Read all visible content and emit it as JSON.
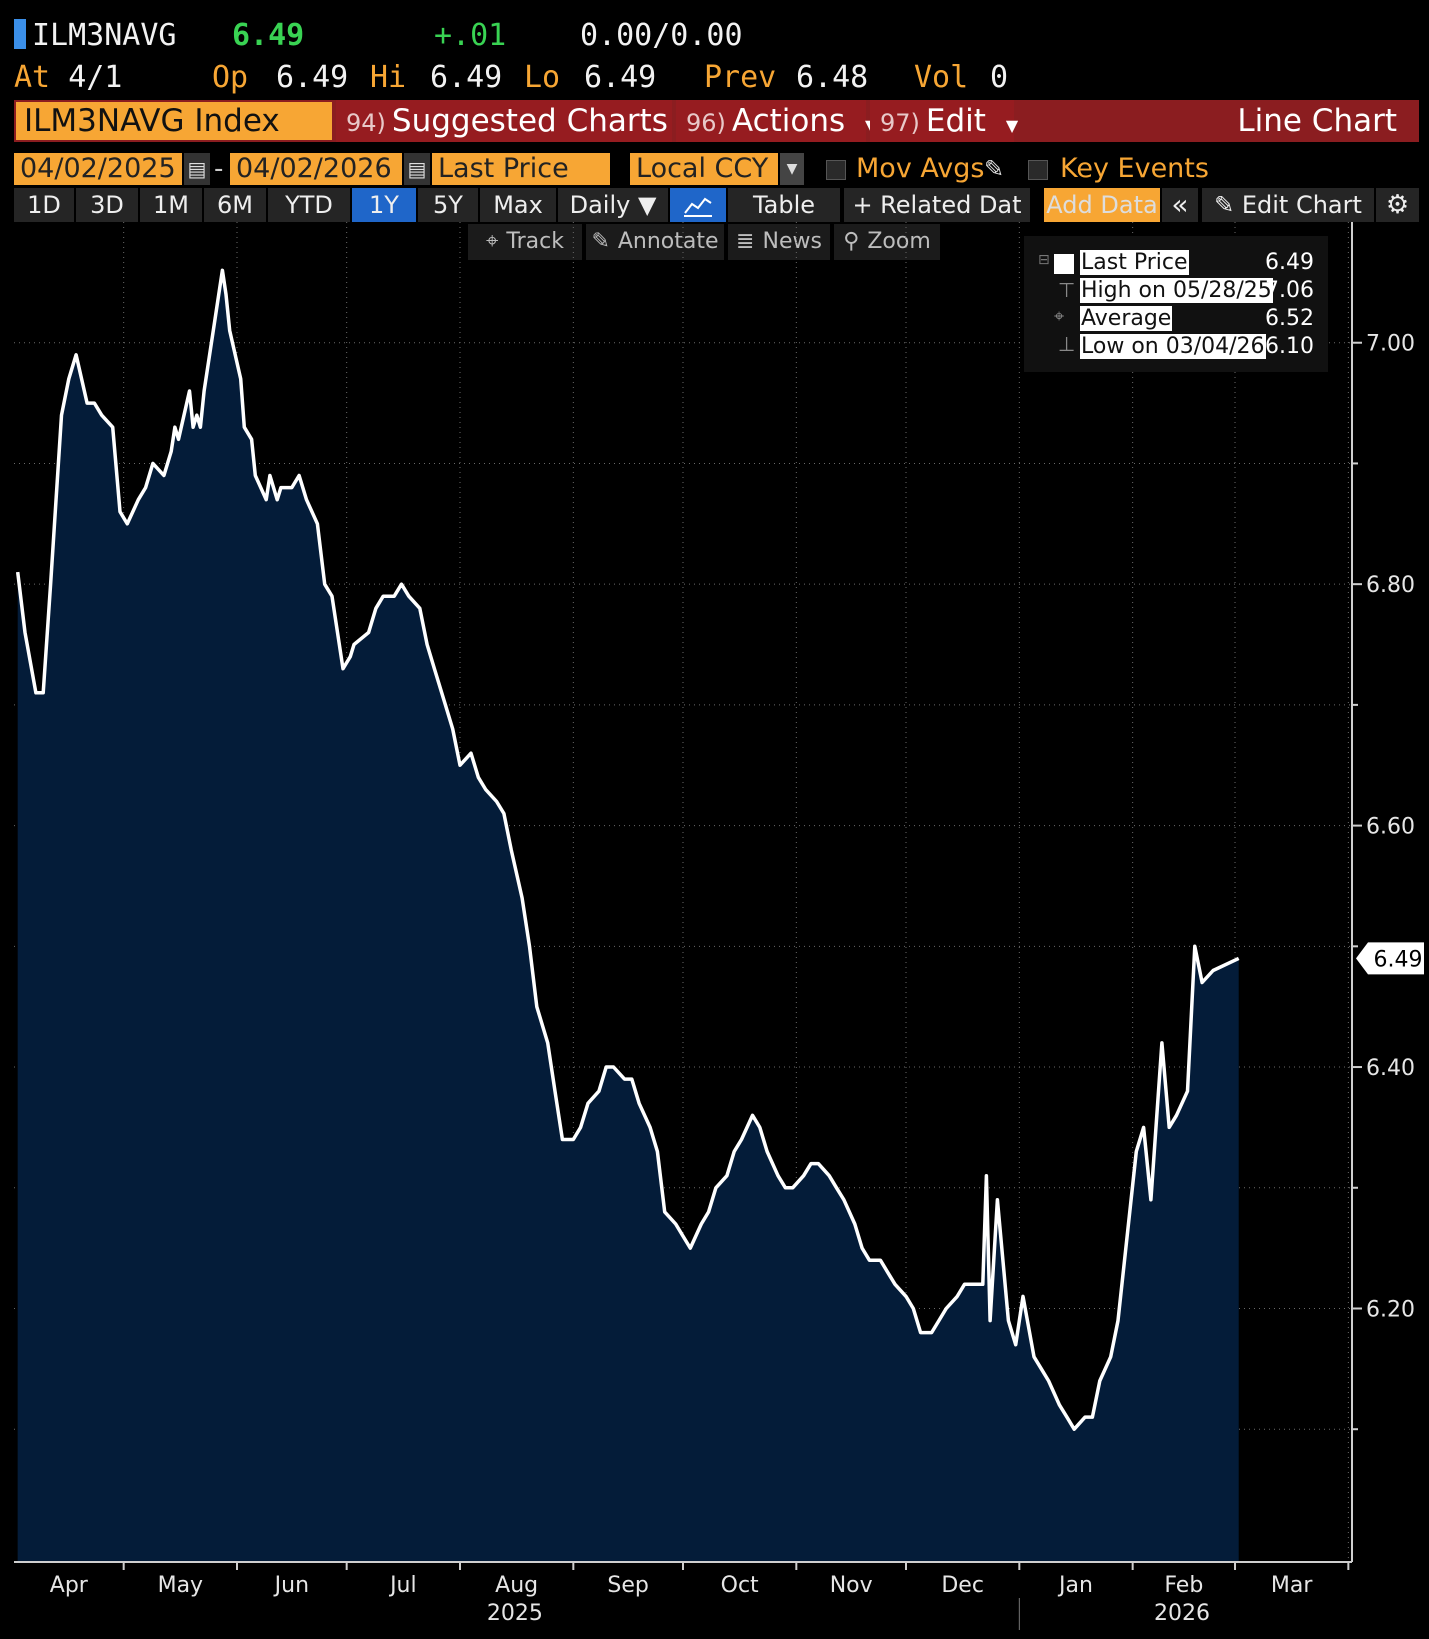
{
  "quote": {
    "ticker": "ILM3NAVG",
    "last": "6.49",
    "change": "+.01",
    "bid_ask": "0.00/0.00",
    "at_label": "At",
    "at_date": "4/1",
    "open_label": "Op",
    "open": "6.49",
    "high_label": "Hi",
    "high": "6.49",
    "low_label": "Lo",
    "low": "6.49",
    "prev_label": "Prev",
    "prev": "6.48",
    "vol_label": "Vol",
    "vol": "0"
  },
  "menu": {
    "security": "ILM3NAVG Index",
    "suggested_num": "94)",
    "suggested": "Suggested Charts",
    "actions_num": "96)",
    "actions": "Actions",
    "edit_num": "97)",
    "edit": "Edit",
    "chart_type": "Line Chart"
  },
  "settings": {
    "start_date": "04/02/2025",
    "end_date": "04/02/2026",
    "date_sep": "-",
    "field": "Last Price",
    "currency": "Local CCY",
    "mov_avgs": "Mov Avgs",
    "key_events": "Key Events"
  },
  "ranges": {
    "r1d": "1D",
    "r3d": "3D",
    "r1m": "1M",
    "r6m": "6M",
    "rytd": "YTD",
    "r1y": "1Y",
    "r5y": "5Y",
    "rmax": "Max",
    "frequency": "Daily ▼",
    "table": "Table",
    "related": "+ Related Dat",
    "add_data": "Add Data",
    "collapse": "«",
    "edit_chart": "✎ Edit Chart",
    "settings_icon": "⚙"
  },
  "tools": {
    "track": "Track",
    "annotate": "Annotate",
    "news": "News",
    "zoom": "Zoom"
  },
  "legend": {
    "last_label": "Last Price",
    "last_value": "6.49",
    "high_label": "High on 05/28/25",
    "high_value": "7.06",
    "avg_label": "Average",
    "avg_value": "6.52",
    "low_label": "Low on 03/04/26",
    "low_value": "6.10"
  },
  "colors": {
    "line": "#ffffff",
    "fill": "#041c39",
    "grid": "#6a6a6a",
    "accent_orange": "#f7a634",
    "menu_red": "#961c20"
  },
  "chart_data": {
    "type": "area",
    "series": [
      {
        "name": "Last Price",
        "values": [
          [
            "2025-04-02",
            6.81
          ],
          [
            "2025-04-04",
            6.76
          ],
          [
            "2025-04-07",
            6.71
          ],
          [
            "2025-04-09",
            6.71
          ],
          [
            "2025-04-11",
            6.8
          ],
          [
            "2025-04-14",
            6.94
          ],
          [
            "2025-04-16",
            6.97
          ],
          [
            "2025-04-18",
            6.99
          ],
          [
            "2025-04-21",
            6.95
          ],
          [
            "2025-04-23",
            6.95
          ],
          [
            "2025-04-25",
            6.94
          ],
          [
            "2025-04-28",
            6.93
          ],
          [
            "2025-04-30",
            6.86
          ],
          [
            "2025-05-02",
            6.85
          ],
          [
            "2025-05-05",
            6.87
          ],
          [
            "2025-05-07",
            6.88
          ],
          [
            "2025-05-09",
            6.9
          ],
          [
            "2025-05-12",
            6.89
          ],
          [
            "2025-05-14",
            6.91
          ],
          [
            "2025-05-15",
            6.93
          ],
          [
            "2025-05-16",
            6.92
          ],
          [
            "2025-05-19",
            6.96
          ],
          [
            "2025-05-20",
            6.93
          ],
          [
            "2025-05-21",
            6.94
          ],
          [
            "2025-05-22",
            6.93
          ],
          [
            "2025-05-23",
            6.96
          ],
          [
            "2025-05-26",
            7.02
          ],
          [
            "2025-05-28",
            7.06
          ],
          [
            "2025-05-29",
            7.04
          ],
          [
            "2025-05-30",
            7.01
          ],
          [
            "2025-06-02",
            6.97
          ],
          [
            "2025-06-03",
            6.93
          ],
          [
            "2025-06-05",
            6.92
          ],
          [
            "2025-06-06",
            6.89
          ],
          [
            "2025-06-09",
            6.87
          ],
          [
            "2025-06-10",
            6.89
          ],
          [
            "2025-06-12",
            6.87
          ],
          [
            "2025-06-13",
            6.88
          ],
          [
            "2025-06-16",
            6.88
          ],
          [
            "2025-06-18",
            6.89
          ],
          [
            "2025-06-20",
            6.87
          ],
          [
            "2025-06-23",
            6.85
          ],
          [
            "2025-06-25",
            6.8
          ],
          [
            "2025-06-27",
            6.79
          ],
          [
            "2025-06-30",
            6.73
          ],
          [
            "2025-07-02",
            6.74
          ],
          [
            "2025-07-03",
            6.75
          ],
          [
            "2025-07-07",
            6.76
          ],
          [
            "2025-07-09",
            6.78
          ],
          [
            "2025-07-11",
            6.79
          ],
          [
            "2025-07-14",
            6.79
          ],
          [
            "2025-07-16",
            6.8
          ],
          [
            "2025-07-18",
            6.79
          ],
          [
            "2025-07-21",
            6.78
          ],
          [
            "2025-07-23",
            6.75
          ],
          [
            "2025-07-25",
            6.73
          ],
          [
            "2025-07-28",
            6.7
          ],
          [
            "2025-07-30",
            6.68
          ],
          [
            "2025-08-01",
            6.65
          ],
          [
            "2025-08-04",
            6.66
          ],
          [
            "2025-08-06",
            6.64
          ],
          [
            "2025-08-08",
            6.63
          ],
          [
            "2025-08-11",
            6.62
          ],
          [
            "2025-08-13",
            6.61
          ],
          [
            "2025-08-15",
            6.58
          ],
          [
            "2025-08-18",
            6.54
          ],
          [
            "2025-08-20",
            6.5
          ],
          [
            "2025-08-22",
            6.45
          ],
          [
            "2025-08-25",
            6.42
          ],
          [
            "2025-08-27",
            6.38
          ],
          [
            "2025-08-29",
            6.34
          ],
          [
            "2025-09-01",
            6.34
          ],
          [
            "2025-09-03",
            6.35
          ],
          [
            "2025-09-05",
            6.37
          ],
          [
            "2025-09-08",
            6.38
          ],
          [
            "2025-09-10",
            6.4
          ],
          [
            "2025-09-12",
            6.4
          ],
          [
            "2025-09-15",
            6.39
          ],
          [
            "2025-09-17",
            6.39
          ],
          [
            "2025-09-19",
            6.37
          ],
          [
            "2025-09-22",
            6.35
          ],
          [
            "2025-09-24",
            6.33
          ],
          [
            "2025-09-26",
            6.28
          ],
          [
            "2025-09-29",
            6.27
          ],
          [
            "2025-10-01",
            6.26
          ],
          [
            "2025-10-03",
            6.25
          ],
          [
            "2025-10-06",
            6.27
          ],
          [
            "2025-10-08",
            6.28
          ],
          [
            "2025-10-10",
            6.3
          ],
          [
            "2025-10-13",
            6.31
          ],
          [
            "2025-10-15",
            6.33
          ],
          [
            "2025-10-17",
            6.34
          ],
          [
            "2025-10-20",
            6.36
          ],
          [
            "2025-10-22",
            6.35
          ],
          [
            "2025-10-24",
            6.33
          ],
          [
            "2025-10-27",
            6.31
          ],
          [
            "2025-10-29",
            6.3
          ],
          [
            "2025-10-31",
            6.3
          ],
          [
            "2025-11-03",
            6.31
          ],
          [
            "2025-11-05",
            6.32
          ],
          [
            "2025-11-07",
            6.32
          ],
          [
            "2025-11-10",
            6.31
          ],
          [
            "2025-11-12",
            6.3
          ],
          [
            "2025-11-14",
            6.29
          ],
          [
            "2025-11-17",
            6.27
          ],
          [
            "2025-11-19",
            6.25
          ],
          [
            "2025-11-21",
            6.24
          ],
          [
            "2025-11-24",
            6.24
          ],
          [
            "2025-11-26",
            6.23
          ],
          [
            "2025-11-28",
            6.22
          ],
          [
            "2025-12-01",
            6.21
          ],
          [
            "2025-12-03",
            6.2
          ],
          [
            "2025-12-05",
            6.18
          ],
          [
            "2025-12-08",
            6.18
          ],
          [
            "2025-12-10",
            6.19
          ],
          [
            "2025-12-12",
            6.2
          ],
          [
            "2025-12-15",
            6.21
          ],
          [
            "2025-12-17",
            6.22
          ],
          [
            "2025-12-19",
            6.22
          ],
          [
            "2025-12-22",
            6.22
          ],
          [
            "2025-12-23",
            6.31
          ],
          [
            "2025-12-24",
            6.19
          ],
          [
            "2025-12-26",
            6.29
          ],
          [
            "2025-12-29",
            6.19
          ],
          [
            "2025-12-31",
            6.17
          ],
          [
            "2026-01-02",
            6.21
          ],
          [
            "2026-01-05",
            6.16
          ],
          [
            "2026-01-07",
            6.15
          ],
          [
            "2026-01-09",
            6.14
          ],
          [
            "2026-01-12",
            6.12
          ],
          [
            "2026-01-14",
            6.11
          ],
          [
            "2026-01-16",
            6.1
          ],
          [
            "2026-01-19",
            6.11
          ],
          [
            "2026-01-21",
            6.11
          ],
          [
            "2026-01-23",
            6.14
          ],
          [
            "2026-01-26",
            6.16
          ],
          [
            "2026-01-28",
            6.19
          ],
          [
            "2026-02-02",
            6.33
          ],
          [
            "2026-02-04",
            6.35
          ],
          [
            "2026-02-06",
            6.29
          ],
          [
            "2026-02-09",
            6.42
          ],
          [
            "2026-02-11",
            6.35
          ],
          [
            "2026-02-13",
            6.36
          ],
          [
            "2026-02-16",
            6.38
          ],
          [
            "2026-02-18",
            6.5
          ],
          [
            "2026-02-20",
            6.47
          ],
          [
            "2026-02-23",
            6.48
          ],
          [
            "2026-03-02",
            6.49
          ]
        ]
      }
    ],
    "x_labels": [
      "Apr",
      "May",
      "Jun",
      "Jul",
      "Aug",
      "Sep",
      "Oct",
      "Nov",
      "Dec",
      "Jan",
      "Feb",
      "Mar"
    ],
    "x_year_labels": [
      "2025",
      "2026"
    ],
    "y_ticks": [
      "7.00",
      "6.80",
      "6.60",
      "6.40",
      "6.20"
    ],
    "ylim": [
      5.99,
      7.1
    ],
    "last_value_label": "6.49",
    "grid": true,
    "legend_position": "top-right"
  }
}
